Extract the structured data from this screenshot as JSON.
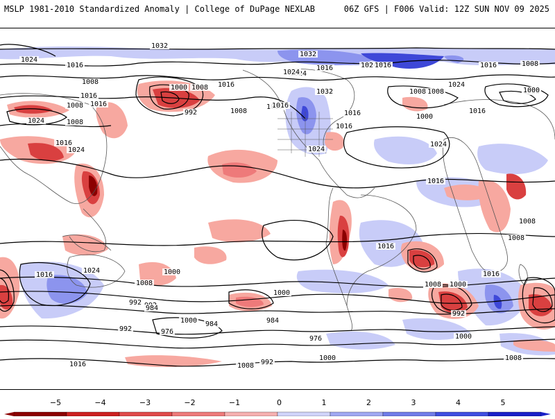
{
  "header": {
    "left_title": "MSLP 1981-2010 Standardized Anomaly | College of DuPage NEXLAB",
    "right_title": "06Z GFS | F006 Valid: 12Z SUN NOV 09 2025"
  },
  "isobar_labels": [
    "1032",
    "1024",
    "1016",
    "1008",
    "1016",
    "1008",
    "1016",
    "1024",
    "1024",
    "1008",
    "1016",
    "1000",
    "1008",
    "992",
    "1016",
    "1008",
    "1016",
    "1024",
    "1032",
    "1024",
    "1016",
    "1024",
    "1016",
    "1016",
    "1024",
    "1016",
    "1008",
    "1032",
    "1000",
    "1024",
    "1016",
    "1008",
    "1016",
    "1008",
    "1000",
    "1016",
    "1008",
    "1024",
    "1016",
    "1024",
    "1016",
    "1008",
    "1000",
    "1016",
    "1008",
    "992",
    "1000",
    "1016",
    "984",
    "992",
    "1000",
    "984",
    "976",
    "984",
    "992",
    "1016",
    "1024",
    "1008",
    "1000",
    "1008",
    "992",
    "1000",
    "976",
    "1008",
    "1000",
    "992",
    "1008",
    "1016",
    "1008",
    "1000"
  ],
  "colorbar": {
    "ticks": [
      "−5",
      "−4",
      "−3",
      "−2",
      "−1",
      "0",
      "1",
      "2",
      "3",
      "4",
      "5"
    ],
    "colors": [
      "#8b0000",
      "#cc2020",
      "#e04a4a",
      "#ee7a7a",
      "#f6b0b0",
      "#ffffff",
      "#d0d4fa",
      "#a0a8f2",
      "#707ce8",
      "#3f4ee0",
      "#1a20c8"
    ]
  },
  "anomaly_colors": {
    "neg_strong": "#8b0000",
    "neg_mid": "#d94040",
    "neg_weak": "#f7a8a0",
    "pos_weak": "#c8ccf8",
    "pos_mid": "#8c94ee",
    "pos_strong": "#3e48d8"
  }
}
